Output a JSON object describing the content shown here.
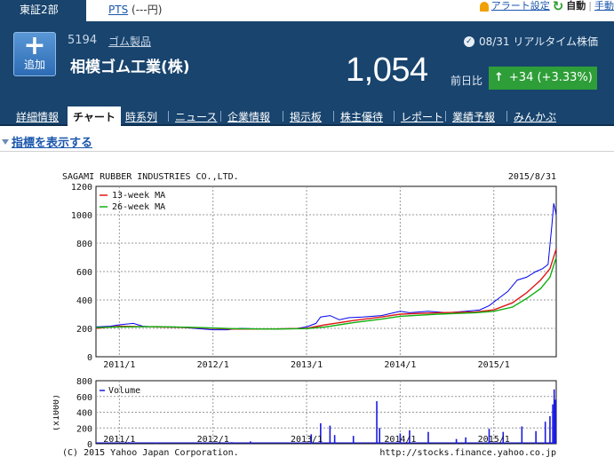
{
  "topbar": {
    "market_tab": "東証2部",
    "pts_link": "PTS",
    "pts_value": "(---円)",
    "alert_label": "アラート設定",
    "auto_label": "自動",
    "manual_label": "手動"
  },
  "stock": {
    "add_label": "追加",
    "code": "5194",
    "sector": "ゴム製品",
    "name": "相模ゴム工業(株)",
    "datetime": "08/31 リアルタイム株価",
    "price": "1,054",
    "change_label": "前日比",
    "change": "+34 (+3.33%)"
  },
  "nav": {
    "tabs": [
      "詳細情報",
      "チャート",
      "時系列",
      "ニュース",
      "企業情報",
      "掲示板",
      "株主優待",
      "レポート",
      "業績予報",
      "みんかぶ"
    ],
    "active_index": 1
  },
  "indicator_toggle": "指標を表示する",
  "colors": {
    "header_bg": "#18446e",
    "price_line": "#0000ee",
    "ma13": "#e01818",
    "ma26": "#10b010",
    "volume": "#1a1ae0",
    "change_bg": "#2e9e38"
  },
  "chart_data": {
    "type": "line",
    "company_en": "SAGAMI RUBBER INDUSTRIES CO.,LTD.",
    "date": "2015/8/31",
    "x_ticks": [
      "2011/1",
      "2012/1",
      "2013/1",
      "2014/1",
      "2015/1"
    ],
    "price_panel": {
      "ylim": [
        0,
        1200
      ],
      "y_ticks": [
        0,
        200,
        400,
        600,
        800,
        1000,
        1200
      ],
      "legend": [
        "13-week MA",
        "26-week MA"
      ],
      "x_range": [
        2010.75,
        2015.667
      ],
      "series": [
        {
          "key": "price",
          "x": [
            2010.75,
            2010.9,
            2011.0,
            2011.15,
            2011.25,
            2011.4,
            2011.6,
            2011.8,
            2012.0,
            2012.15,
            2012.3,
            2012.5,
            2012.7,
            2012.9,
            2013.0,
            2013.1,
            2013.15,
            2013.25,
            2013.35,
            2013.45,
            2013.6,
            2013.8,
            2014.0,
            2014.1,
            2014.3,
            2014.5,
            2014.7,
            2014.85,
            2014.95,
            2015.05,
            2015.15,
            2015.25,
            2015.35,
            2015.45,
            2015.52,
            2015.58,
            2015.62,
            2015.64,
            2015.667
          ],
          "values": [
            210,
            215,
            225,
            235,
            215,
            210,
            210,
            200,
            190,
            190,
            200,
            195,
            195,
            200,
            210,
            235,
            280,
            290,
            260,
            275,
            280,
            290,
            320,
            310,
            320,
            310,
            320,
            330,
            360,
            410,
            460,
            540,
            560,
            600,
            620,
            650,
            920,
            1080,
            1000
          ]
        },
        {
          "key": "ma13",
          "x": [
            2010.75,
            2011.0,
            2011.4,
            2011.8,
            2012.2,
            2012.6,
            2013.0,
            2013.2,
            2013.5,
            2013.8,
            2014.0,
            2014.4,
            2014.8,
            2015.0,
            2015.2,
            2015.35,
            2015.5,
            2015.6,
            2015.667
          ],
          "values": [
            200,
            215,
            210,
            205,
            195,
            195,
            200,
            225,
            255,
            280,
            300,
            310,
            315,
            330,
            380,
            450,
            540,
            620,
            760
          ]
        },
        {
          "key": "ma26",
          "x": [
            2010.75,
            2011.0,
            2011.4,
            2011.8,
            2012.2,
            2012.6,
            2013.0,
            2013.2,
            2013.5,
            2013.8,
            2014.0,
            2014.4,
            2014.8,
            2015.0,
            2015.2,
            2015.35,
            2015.5,
            2015.6,
            2015.667
          ],
          "values": [
            205,
            210,
            212,
            207,
            198,
            195,
            198,
            210,
            240,
            265,
            285,
            300,
            310,
            320,
            350,
            410,
            480,
            560,
            700
          ]
        }
      ]
    },
    "volume_panel": {
      "ylabel": "(x1000)",
      "ylim": [
        0,
        800
      ],
      "y_ticks": [
        0,
        200,
        400,
        600,
        800
      ],
      "legend": [
        "Volume"
      ],
      "x": [
        2011.1,
        2011.4,
        2012.2,
        2012.4,
        2013.05,
        2013.15,
        2013.25,
        2013.3,
        2013.5,
        2013.75,
        2013.78,
        2014.0,
        2014.1,
        2014.3,
        2014.6,
        2014.7,
        2014.95,
        2015.1,
        2015.3,
        2015.45,
        2015.55,
        2015.6,
        2015.63,
        2015.645,
        2015.66
      ],
      "values": [
        20,
        15,
        20,
        30,
        120,
        260,
        230,
        110,
        100,
        540,
        200,
        130,
        170,
        150,
        60,
        80,
        190,
        150,
        220,
        160,
        280,
        350,
        500,
        690,
        560
      ]
    },
    "footer_left": "(C) 2015 Yahoo Japan Corporation.",
    "footer_right": "http://stocks.finance.yahoo.co.jp"
  }
}
